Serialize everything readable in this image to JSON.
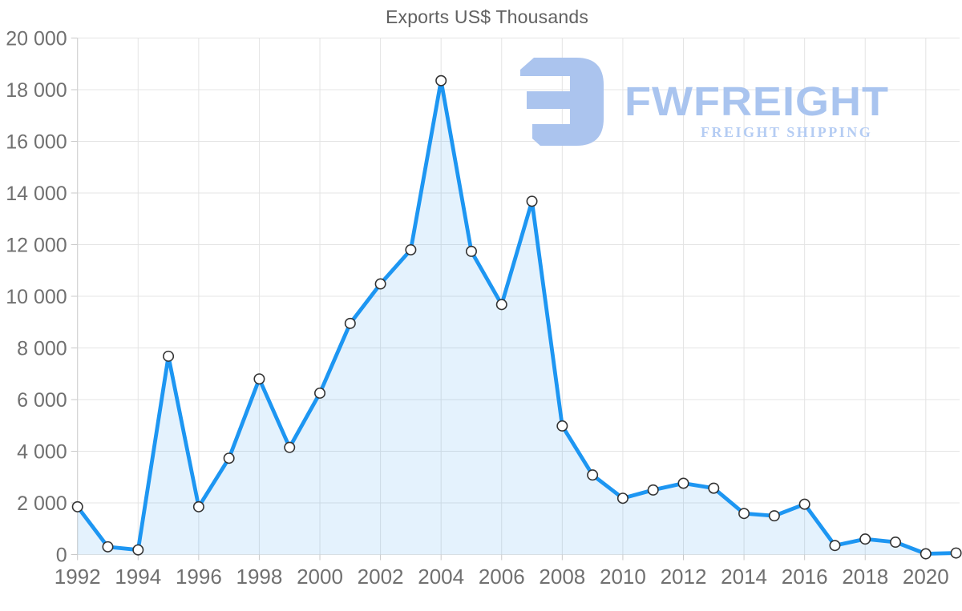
{
  "title": "Exports US$ Thousands",
  "watermark": {
    "brand": "FWFREIGHT",
    "tagline": "FREIGHT SHIPPING",
    "brand_color": "#a9c4ef",
    "tagline_color": "#b4ccf3",
    "mark_color": "#abc4ee"
  },
  "colors": {
    "line": "#1d96f2",
    "area_fill": "#1d96f2",
    "area_opacity": 0.12,
    "marker_fill": "#ffffff",
    "marker_stroke": "#333333",
    "gridline": "#e4e4e4",
    "axis_line": "#cfcfcf",
    "tick": "#c9c9c9",
    "axis_label": "#707070",
    "title_color": "#616161"
  },
  "chart_data": {
    "type": "area",
    "title": "Exports US$ Thousands",
    "x": [
      1992,
      1993,
      1994,
      1995,
      1996,
      1997,
      1998,
      1999,
      2000,
      2001,
      2002,
      2003,
      2004,
      2005,
      2006,
      2007,
      2008,
      2009,
      2010,
      2011,
      2012,
      2013,
      2014,
      2015,
      2016,
      2017,
      2018,
      2019,
      2020,
      2021
    ],
    "values": [
      1850,
      300,
      180,
      7680,
      1850,
      3730,
      6800,
      4150,
      6250,
      8950,
      10480,
      11800,
      18350,
      11740,
      9680,
      13680,
      4980,
      3080,
      2180,
      2500,
      2760,
      2570,
      1590,
      1500,
      1950,
      350,
      600,
      480,
      30,
      60
    ],
    "series_name": "Exports US$ Thousands",
    "ylim": [
      0,
      20000
    ],
    "y_tick_step": 2000,
    "y_tick_labels": [
      "0",
      "2 000",
      "4 000",
      "6 000",
      "8 000",
      "10 000",
      "12 000",
      "14 000",
      "16 000",
      "18 000",
      "20 000"
    ],
    "x_tick_labels": [
      "1992",
      "1994",
      "1996",
      "1998",
      "2000",
      "2002",
      "2004",
      "2006",
      "2008",
      "2010",
      "2012",
      "2014",
      "2016",
      "2018",
      "2020"
    ],
    "x_label_step": 2,
    "grid": true,
    "legend": "none",
    "marker": "circle"
  }
}
